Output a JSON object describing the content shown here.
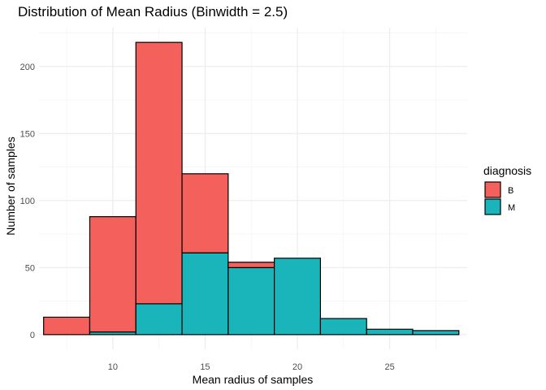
{
  "chart_data": {
    "type": "bar",
    "title": "Distribution of Mean Radius (Binwidth = 2.5)",
    "xlabel": "Mean radius of samples",
    "ylabel": "Number of samples",
    "x_ticks": [
      10,
      15,
      20,
      25
    ],
    "y_ticks": [
      0,
      50,
      100,
      150,
      200
    ],
    "xlim": [
      6.0,
      29.2
    ],
    "ylim": [
      -11,
      229
    ],
    "binwidth": 2.5,
    "bins": [
      {
        "start": 6.25,
        "end": 8.75
      },
      {
        "start": 8.75,
        "end": 11.25
      },
      {
        "start": 11.25,
        "end": 13.75
      },
      {
        "start": 13.75,
        "end": 16.25
      },
      {
        "start": 16.25,
        "end": 18.75
      },
      {
        "start": 18.75,
        "end": 21.25
      },
      {
        "start": 21.25,
        "end": 23.75
      },
      {
        "start": 23.75,
        "end": 26.25
      },
      {
        "start": 26.25,
        "end": 28.75
      }
    ],
    "series": [
      {
        "name": "M",
        "color": "#19B5BA",
        "values": [
          0,
          2,
          23,
          61,
          50,
          57,
          12,
          4,
          3
        ]
      },
      {
        "name": "B",
        "color": "#F4605C",
        "values": [
          13,
          86,
          195,
          59,
          4,
          0,
          0,
          0,
          0
        ]
      }
    ],
    "stacked": true,
    "grid": true,
    "legend": {
      "title": "diagnosis",
      "position": "right",
      "items": [
        "B",
        "M"
      ]
    }
  }
}
